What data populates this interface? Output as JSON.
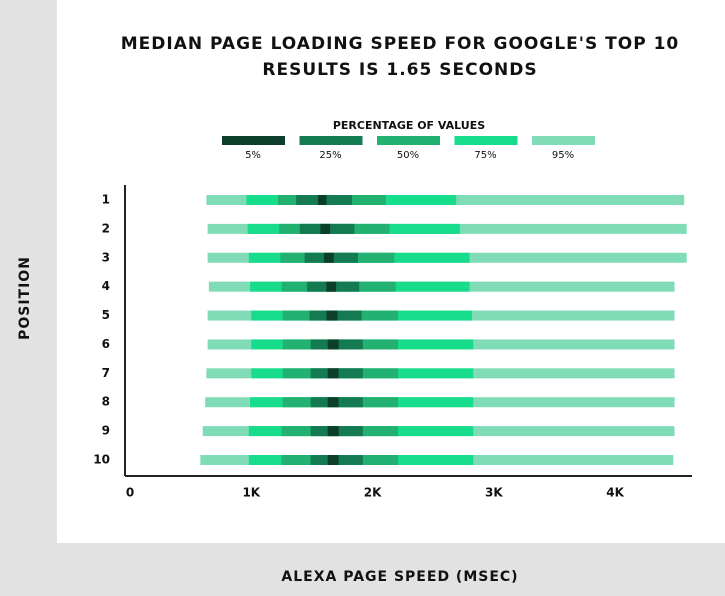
{
  "chart_data": {
    "type": "range-bar",
    "title": [
      "MEDIAN PAGE LOADING SPEED FOR GOOGLE'S TOP 10",
      "RESULTS IS 1.65 SECONDS"
    ],
    "legend_title": "PERCENTAGE OF VALUES",
    "x_label": "ALEXA PAGE SPEED (MSEC)",
    "y_label": "POSITION",
    "categories": [
      "1",
      "2",
      "3",
      "4",
      "5",
      "6",
      "7",
      "8",
      "9",
      "10"
    ],
    "xlim": [
      0,
      4700
    ],
    "xticks": [
      0,
      {
        "value": 1000,
        "label": "1K"
      },
      {
        "value": 2000,
        "label": "2K"
      },
      {
        "value": 3000,
        "label": "3K"
      },
      {
        "value": 4000,
        "label": "4K"
      }
    ],
    "series": [
      {
        "name": "5%",
        "color": "#0c3f2b",
        "low": [
          1550,
          1570,
          1600,
          1620,
          1620,
          1630,
          1630,
          1630,
          1630,
          1630
        ],
        "high": [
          1620,
          1650,
          1680,
          1700,
          1710,
          1720,
          1720,
          1720,
          1720,
          1720
        ]
      },
      {
        "name": "25%",
        "color": "#147a52",
        "low": [
          1370,
          1400,
          1440,
          1460,
          1480,
          1490,
          1490,
          1490,
          1490,
          1490
        ],
        "high": [
          1830,
          1850,
          1880,
          1890,
          1910,
          1920,
          1920,
          1920,
          1920,
          1920
        ]
      },
      {
        "name": "50%",
        "color": "#22b171",
        "low": [
          1220,
          1230,
          1240,
          1250,
          1260,
          1260,
          1260,
          1260,
          1250,
          1250
        ],
        "high": [
          2110,
          2140,
          2180,
          2190,
          2210,
          2210,
          2210,
          2210,
          2210,
          2210
        ]
      },
      {
        "name": "75%",
        "color": "#16dc8c",
        "low": [
          960,
          970,
          980,
          990,
          1000,
          1000,
          1000,
          990,
          980,
          980
        ],
        "high": [
          2690,
          2720,
          2800,
          2800,
          2820,
          2830,
          2830,
          2830,
          2830,
          2830
        ]
      },
      {
        "name": "95%",
        "color": "#80dbb7",
        "low": [
          630,
          640,
          640,
          650,
          640,
          640,
          630,
          620,
          600,
          580
        ],
        "high": [
          4570,
          4590,
          4590,
          4490,
          4490,
          4490,
          4490,
          4490,
          4490,
          4480
        ]
      }
    ]
  }
}
